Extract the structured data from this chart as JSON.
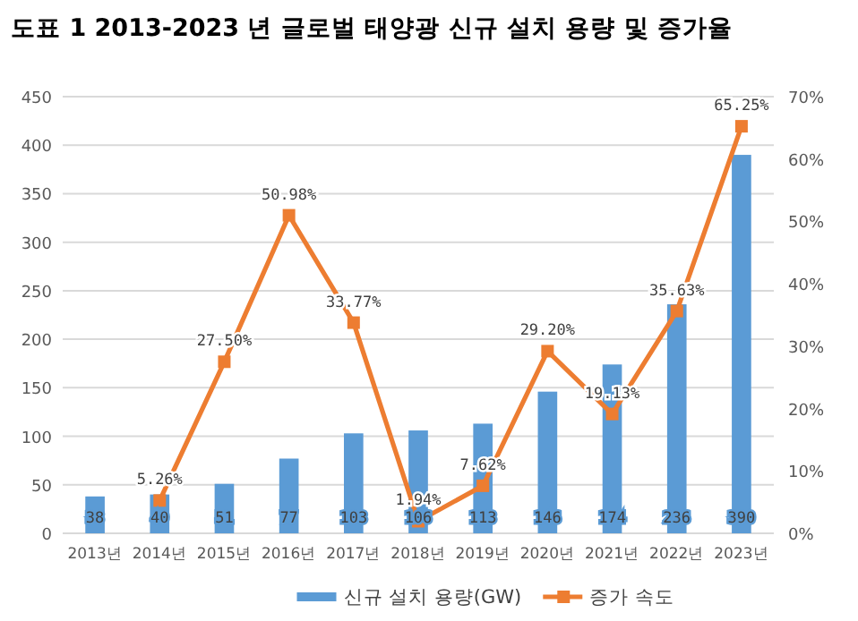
{
  "chart_data": {
    "type": "bar",
    "title": "도표 1 2013-2023 년 글로벌 태양광 신규 설치 용량 및 증가율",
    "categories": [
      "2013년",
      "2014년",
      "2015년",
      "2016년",
      "2017년",
      "2018년",
      "2019년",
      "2020년",
      "2021년",
      "2022년",
      "2023년"
    ],
    "series": [
      {
        "name": "신규 설치 용량(GW)",
        "color": "#5b9bd5",
        "values": [
          38,
          40,
          51,
          77,
          103,
          106,
          113,
          146,
          174,
          236,
          390
        ]
      },
      {
        "name": "증가 속도",
        "type": "line",
        "axis": "y2",
        "color": "#ed7d31",
        "marker": "square",
        "values": [
          null,
          5.26,
          27.5,
          50.98,
          33.77,
          1.94,
          7.62,
          29.2,
          19.13,
          35.63,
          65.25
        ],
        "value_labels": [
          null,
          "5.26%",
          "27.50%",
          "50.98%",
          "33.77%",
          "1.94%",
          "7.62%",
          "29.20%",
          "19.13%",
          "35.63%",
          "65.25%"
        ]
      }
    ],
    "ylim": [
      0,
      450
    ],
    "yticks": [
      0,
      50,
      100,
      150,
      200,
      250,
      300,
      350,
      400,
      450
    ],
    "y2lim": [
      0,
      70
    ],
    "y2ticks": [
      {
        "value": 0,
        "label": "0%"
      },
      {
        "value": 10,
        "label": "10%"
      },
      {
        "value": 20,
        "label": "20%"
      },
      {
        "value": 30,
        "label": "30%"
      },
      {
        "value": 40,
        "label": "40%"
      },
      {
        "value": 50,
        "label": "50%"
      },
      {
        "value": 60,
        "label": "60%"
      },
      {
        "value": 70,
        "label": "70%"
      }
    ],
    "grid": "y",
    "legend": "bottom",
    "data_labels": true
  }
}
